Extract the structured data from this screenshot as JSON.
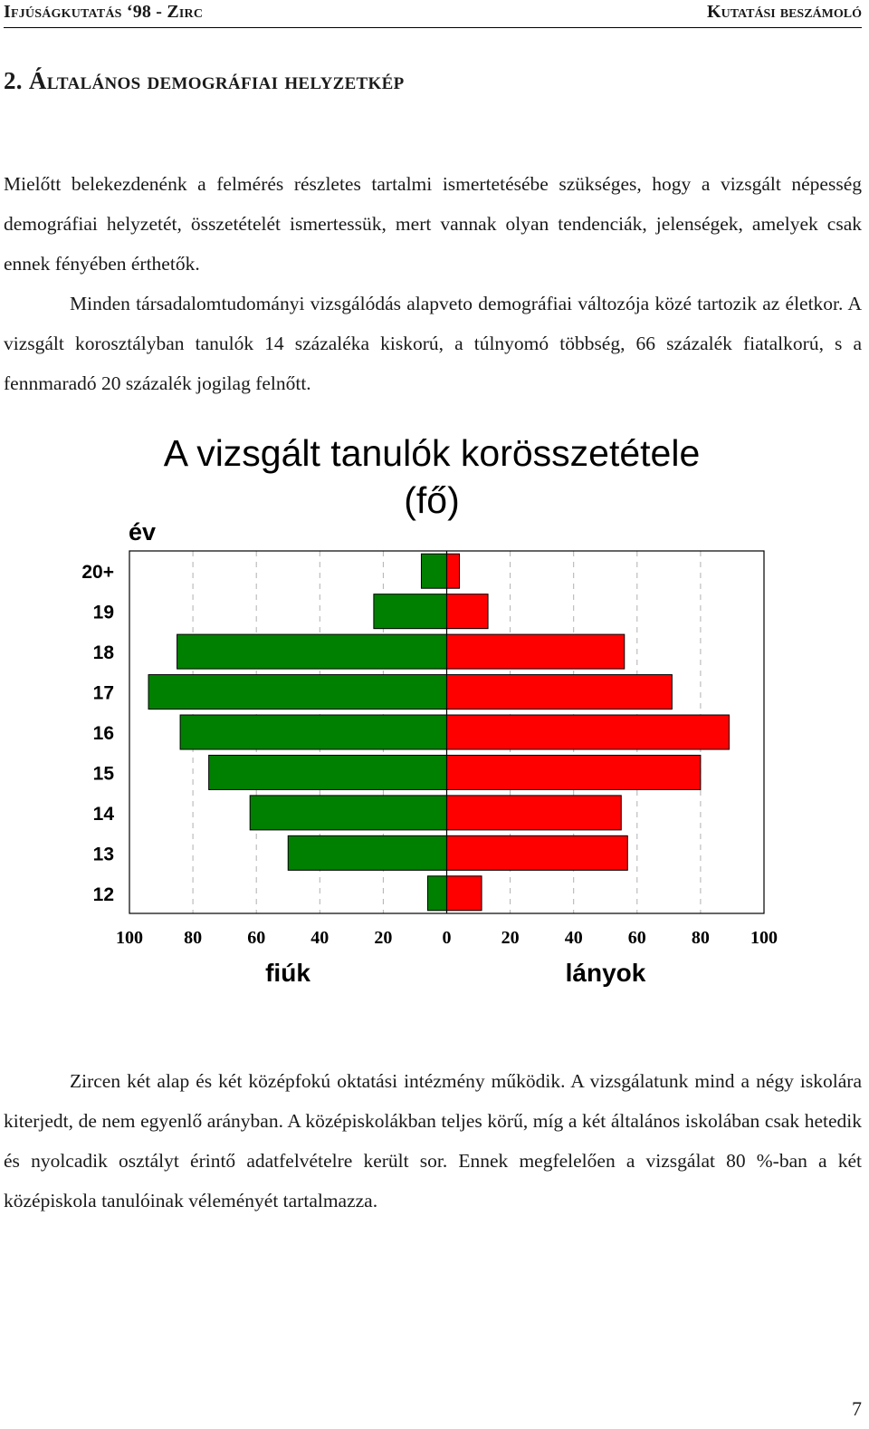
{
  "header": {
    "left": "Ifjúságkutatás ‘98 - Zirc",
    "right": "Kutatási beszámoló"
  },
  "section_title": "2. Általános demográfiai helyzetkép",
  "paragraphs": [
    "Mielőtt belekezdenénk a felmérés részletes tartalmi ismertetésébe szükséges, hogy a vizsgált népesség demográfiai helyzetét, összetételét ismertessük, mert vannak olyan tendenciák, jelenségek, amelyek csak ennek fényében érthetők.",
    "Minden társadalomtudományi vizsgálódás alapveto demográfiai változója közé tartozik az életkor. A vizsgált korosztályban tanulók 14 százaléka kiskorú, a túlnyomó többség, 66 százalék fiatalkorú, s a fennmaradó 20 százalék jogilag felnőtt.",
    "Zircen két alap és két középfokú oktatási intézmény működik. A vizsgálatunk mind a négy iskolára kiterjedt, de nem egyenlő arányban. A középiskolákban teljes körű, míg a két általános iskolában csak hetedik és nyolcadik osztályt érintő adatfelvételre került sor. Ennek megfelelően a vizsgálat 80 %-ban a két középiskola tanulóinak véleményét tartalmazza."
  ],
  "page_number": "7",
  "chart_data": {
    "type": "bar",
    "orientation": "horizontal",
    "title_line1": "A vizsgált tanulók korösszetétele",
    "title_line2": "(fő)",
    "ylabel": "év",
    "categories": [
      "20+",
      "19",
      "18",
      "17",
      "16",
      "15",
      "14",
      "13",
      "12"
    ],
    "series": [
      {
        "name": "fiúk",
        "side": "left",
        "color": "#008000",
        "values": [
          8,
          23,
          85,
          94,
          84,
          75,
          62,
          50,
          6
        ]
      },
      {
        "name": "lányok",
        "side": "right",
        "color": "#ff0000",
        "values": [
          4,
          13,
          56,
          71,
          89,
          80,
          55,
          57,
          11
        ]
      }
    ],
    "x_ticks": [
      "100",
      "80",
      "60",
      "40",
      "20",
      "0",
      "20",
      "40",
      "60",
      "80",
      "100"
    ],
    "xlim": [
      -100,
      100
    ],
    "grid": true,
    "left_group_label": "fiúk",
    "right_group_label": "lányok"
  }
}
